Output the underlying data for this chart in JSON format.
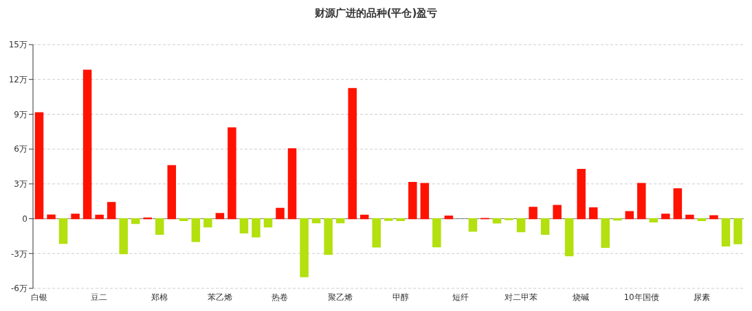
{
  "chart_data": {
    "type": "bar",
    "title": "财源广进的品种(平仓)盈亏",
    "categories": [
      "白银",
      null,
      null,
      null,
      null,
      "豆二",
      null,
      null,
      null,
      null,
      "郑棉",
      null,
      null,
      null,
      null,
      "苯乙烯",
      null,
      null,
      null,
      null,
      "热卷",
      null,
      null,
      null,
      null,
      "聚乙烯",
      null,
      null,
      null,
      null,
      "甲醇",
      null,
      null,
      null,
      null,
      "短纤",
      null,
      null,
      null,
      null,
      "对二甲苯",
      null,
      null,
      null,
      null,
      "烧碱",
      null,
      null,
      null,
      null,
      "10年国债",
      null,
      null,
      null,
      null,
      "尿素",
      null,
      null,
      null
    ],
    "values": [
      9.13,
      0.31,
      -2.13,
      0.39,
      12.8,
      0.3,
      1.4,
      -3.01,
      -0.41,
      0.06,
      -1.34,
      4.57,
      -0.16,
      -1.97,
      -0.71,
      0.45,
      7.83,
      -1.22,
      -1.57,
      -0.71,
      0.89,
      6.02,
      -5.0,
      -0.35,
      -3.07,
      -0.35,
      11.22,
      0.3,
      -2.44,
      -0.14,
      -0.16,
      3.13,
      3.03,
      -2.42,
      0.22,
      0,
      -1.08,
      0.02,
      -0.37,
      -0.08,
      -1.12,
      0.98,
      -1.34,
      1.14,
      -3.19,
      4.25,
      0.93,
      -2.46,
      -0.12,
      0.61,
      3.03,
      -0.28,
      0.39,
      2.58,
      0.3,
      -0.16,
      0.26,
      -2.34,
      -2.15
    ],
    "colors": [
      "#ff1200",
      "#ff1200",
      "#b3e00e",
      "#ff1200",
      "#ff1200",
      "#ff1200",
      "#ff1200",
      "#b3e00e",
      "#b3e00e",
      "#ff1200",
      "#b3e00e",
      "#ff1200",
      "#b3e00e",
      "#b3e00e",
      "#b3e00e",
      "#ff1200",
      "#ff1200",
      "#b3e00e",
      "#b3e00e",
      "#b3e00e",
      "#ff1200",
      "#ff1200",
      "#b3e00e",
      "#b3e00e",
      "#b3e00e",
      "#b3e00e",
      "#ff1200",
      "#ff1200",
      "#b3e00e",
      "#b3e00e",
      "#b3e00e",
      "#ff1200",
      "#ff1200",
      "#b3e00e",
      "#ff1200",
      "#ff1200",
      "#b3e00e",
      "#ff1200",
      "#b3e00e",
      "#b3e00e",
      "#b3e00e",
      "#ff1200",
      "#b3e00e",
      "#ff1200",
      "#b3e00e",
      "#ff1200",
      "#ff1200",
      "#b3e00e",
      "#b3e00e",
      "#ff1200",
      "#ff1200",
      "#b3e00e",
      "#ff1200",
      "#ff1200",
      "#ff1200",
      "#b3e00e",
      "#ff1200",
      "#b3e00e",
      "#b3e00e"
    ],
    "ylim": [
      -6,
      15
    ],
    "yticks": [
      {
        "value": -6,
        "label": "-6万"
      },
      {
        "value": -3,
        "label": "-3万"
      },
      0,
      {
        "value": 3,
        "label": "3万"
      },
      {
        "value": 6,
        "label": "6万"
      },
      {
        "value": 9,
        "label": "9万"
      },
      {
        "value": 12,
        "label": "12万"
      },
      {
        "value": 15,
        "label": "15万"
      }
    ],
    "grid": "y",
    "legend": false
  }
}
